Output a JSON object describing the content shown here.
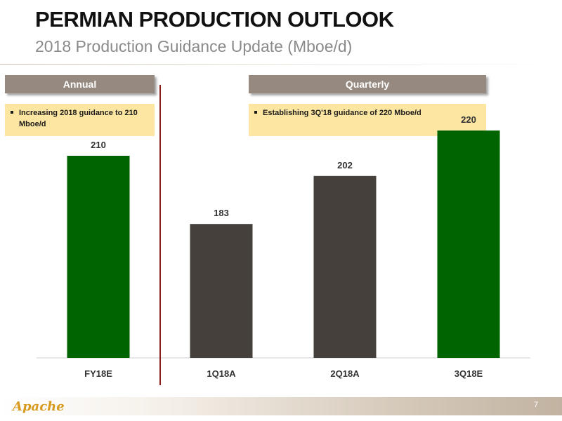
{
  "header": {
    "title": "PERMIAN PRODUCTION OUTLOOK",
    "subtitle": "2018 Production Guidance Update (Mboe/d)"
  },
  "panels": {
    "annual": {
      "label": "Annual",
      "bullet": "Increasing 2018 guidance to 210 Mboe/d"
    },
    "quarterly": {
      "label": "Quarterly",
      "bullet": "Establishing 3Q'18 guidance of 220 Mboe/d"
    }
  },
  "chart_data": {
    "type": "bar",
    "categories": [
      "FY18E",
      "1Q18A",
      "2Q18A",
      "3Q18E"
    ],
    "values": [
      210,
      183,
      202,
      220
    ],
    "data_labels": [
      "210",
      "183",
      "202",
      "220"
    ],
    "bar_colors": [
      "#006400",
      "#45403b",
      "#45403b",
      "#006400"
    ],
    "title": "",
    "xlabel": "",
    "ylabel": "",
    "ylim": [
      130,
      230
    ],
    "grid": false,
    "legend": "none"
  },
  "footer": {
    "logo_text": "Apache",
    "page_number": "7"
  },
  "colors": {
    "pill": "#968a80",
    "note_background": "#fde6a2",
    "divider": "#8b1d1d"
  }
}
